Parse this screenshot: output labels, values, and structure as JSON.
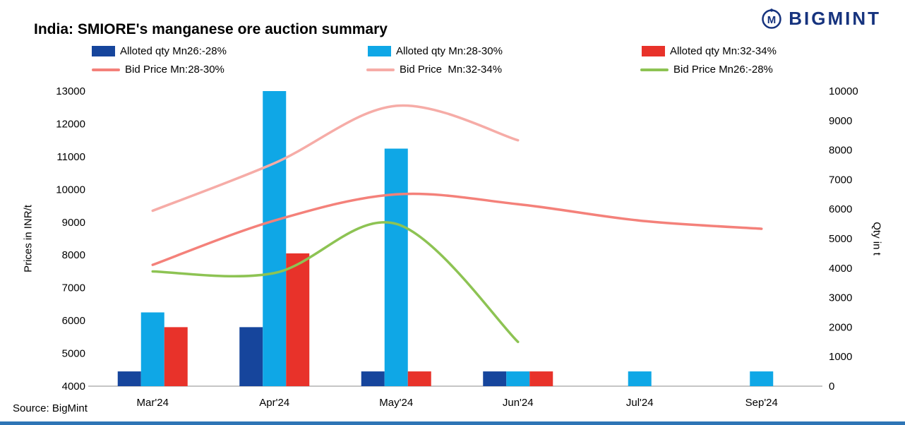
{
  "logo": {
    "text": "BIGMINT"
  },
  "footer": {
    "source": "Source: BigMint"
  },
  "chart_data": {
    "type": "combo",
    "title": "India: SMIORE's manganese ore auction summary",
    "legend_position": "top",
    "grid": "off",
    "categories": [
      "Mar'24",
      "Apr'24",
      "May'24",
      "Jun'24",
      "Jul'24",
      "Sep'24"
    ],
    "bar_series": [
      {
        "name": "Alloted qty Mn26:-28%",
        "color": "#16459c",
        "axis": "right",
        "values": [
          500,
          2000,
          500,
          500,
          null,
          null
        ]
      },
      {
        "name": "Alloted qty Mn:28-30%",
        "color": "#0fa7e6",
        "axis": "right",
        "values": [
          2500,
          10000,
          8050,
          500,
          500,
          500
        ]
      },
      {
        "name": "Alloted qty Mn:32-34%",
        "color": "#e8322a",
        "axis": "right",
        "values": [
          2000,
          4500,
          500,
          500,
          null,
          null
        ]
      }
    ],
    "line_series": [
      {
        "name": "Bid Price Mn:28-30%",
        "color": "#f4817a",
        "axis": "left",
        "values": [
          7700,
          9050,
          9850,
          9550,
          9050,
          8800
        ]
      },
      {
        "name": "Bid Price  Mn:32-34%",
        "color": "#f6aca7",
        "axis": "left",
        "values": [
          9350,
          10800,
          12550,
          11500,
          null,
          null
        ]
      },
      {
        "name": "Bid Price Mn26:-28%",
        "color": "#8dc353",
        "axis": "left",
        "values": [
          7500,
          7450,
          8950,
          5350,
          null,
          null
        ]
      }
    ],
    "left_axis": {
      "title": "Prices in INR/t",
      "min": 4000,
      "max": 13000,
      "step": 1000
    },
    "right_axis": {
      "title": "Qty in t",
      "min": 0,
      "max": 10000,
      "step": 1000
    }
  }
}
